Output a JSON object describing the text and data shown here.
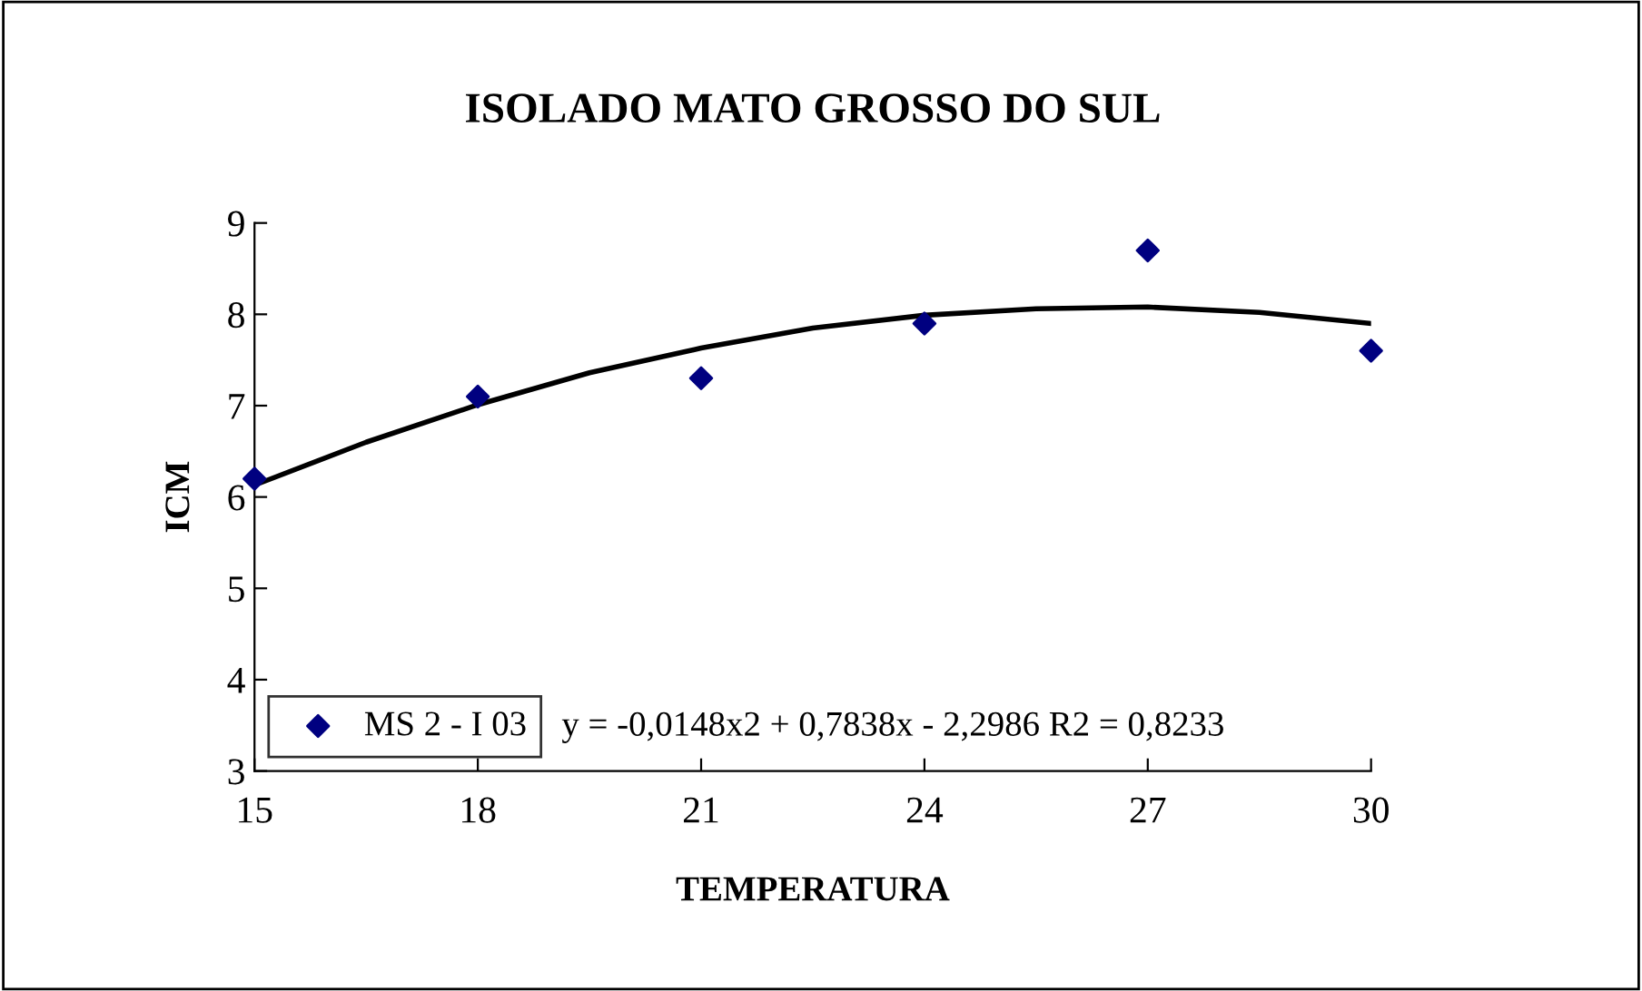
{
  "chart_data": {
    "type": "scatter",
    "title": "ISOLADO MATO GROSSO DO SUL",
    "xlabel": "TEMPERATURA",
    "ylabel": "ICM",
    "xlim": [
      15,
      30
    ],
    "xticks": [
      15,
      18,
      21,
      24,
      27,
      30
    ],
    "ylim": [
      3,
      9
    ],
    "yticks": [
      3,
      4,
      5,
      6,
      7,
      8,
      9
    ],
    "grid": false,
    "legend": "bottom left",
    "series": [
      {
        "name": "MS 2 - I 03",
        "color": "#000080",
        "marker": "diamond",
        "x": [
          15,
          18,
          21,
          24,
          27,
          30
        ],
        "values": [
          6.2,
          7.1,
          7.3,
          7.9,
          8.7,
          7.6
        ]
      },
      {
        "type": "line",
        "color": "#000000",
        "line_style": "solid",
        "x": [
          15,
          16.5,
          18,
          19.5,
          21,
          22.5,
          24,
          25.5,
          27,
          28.5,
          30
        ],
        "values": [
          6.13,
          6.6,
          7.01,
          7.36,
          7.63,
          7.85,
          7.99,
          8.06,
          8.08,
          8.02,
          7.9
        ]
      }
    ],
    "annotations": [
      "y = -0,0148x2 + 0,7838x - 2,2986 R2 = 0,8233"
    ]
  }
}
